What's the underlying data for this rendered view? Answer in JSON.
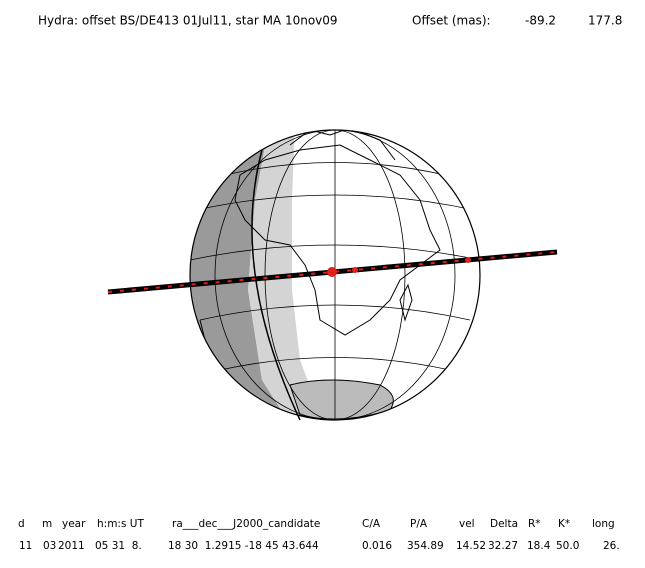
{
  "header": {
    "title": "Hydra: offset BS/DE413 01Jul11, star MA 10nov09",
    "offset_label": "Offset (mas):",
    "offset_values": [
      -89.2,
      177.8
    ]
  },
  "table": {
    "columns": [
      "d",
      "m",
      "year",
      "h:m:s UT",
      "ra___dec___J2000_candidate",
      "C/A",
      "P/A",
      "vel",
      "Delta",
      "R*",
      "K*",
      "long"
    ],
    "rows": [
      [
        "11",
        "03",
        "2011",
        "05 31  8.",
        "18 30  1.2915 -18 45 43.644",
        "0.016",
        "354.89",
        "14.52",
        "32.27",
        "18.4",
        "50.0",
        "26."
      ]
    ]
  }
}
